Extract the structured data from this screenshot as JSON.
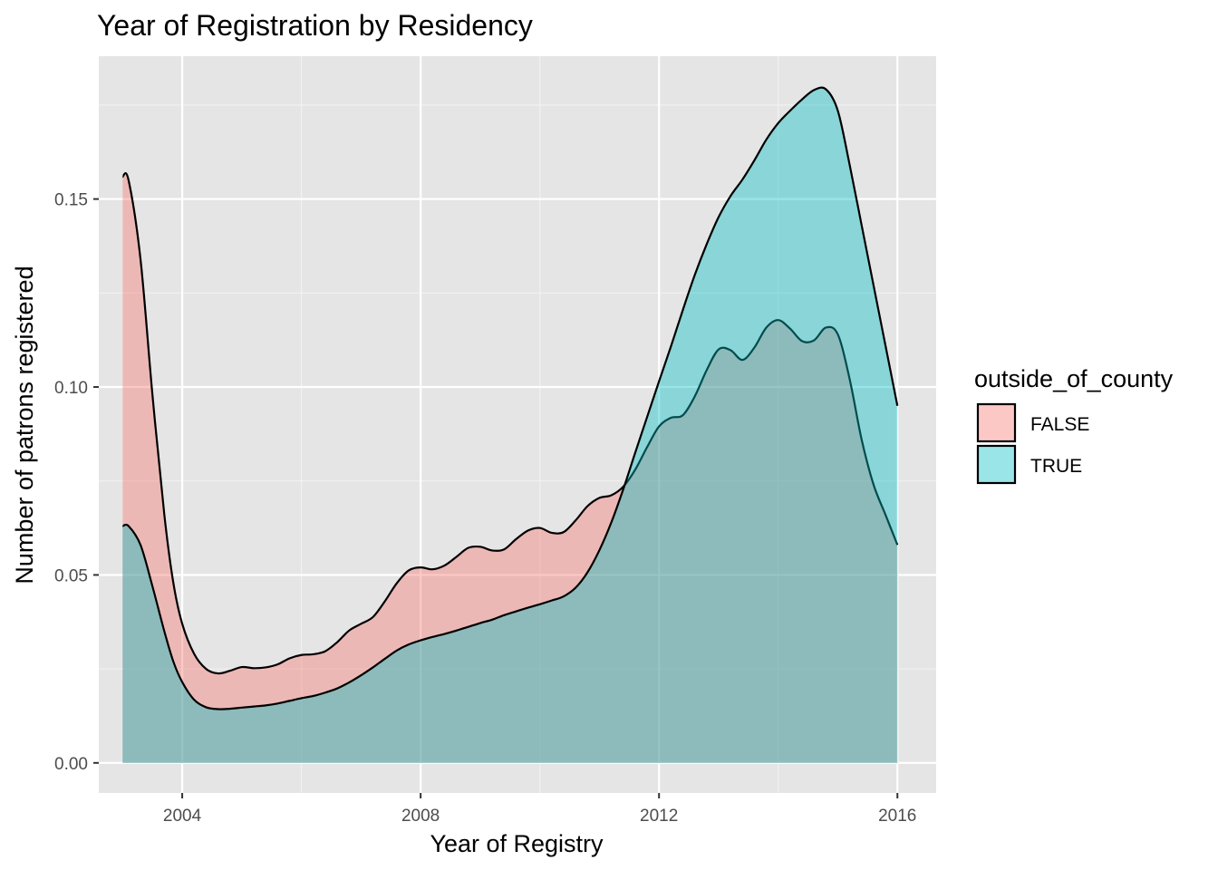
{
  "chart_data": {
    "type": "area",
    "title": "Year of Registration by Residency",
    "xlabel": "Year of Registry",
    "ylabel": "Number of patrons registered",
    "xlim": [
      2002.6,
      2016.65
    ],
    "ylim": [
      -0.008,
      0.188
    ],
    "x_ticks": [
      2004,
      2008,
      2012,
      2016
    ],
    "x_tick_labels": [
      "2004",
      "2008",
      "2012",
      "2016"
    ],
    "y_ticks": [
      0.0,
      0.05,
      0.1,
      0.15
    ],
    "y_tick_labels": [
      "0.00",
      "0.05",
      "0.10",
      "0.15"
    ],
    "grid": true,
    "legend": {
      "title": "outside_of_county",
      "placement": "right"
    },
    "series": [
      {
        "name": "FALSE",
        "color": "#F8766D",
        "x": [
          2003.0,
          2003.1,
          2003.3,
          2003.5,
          2003.7,
          2003.85,
          2004.0,
          2004.2,
          2004.4,
          2004.6,
          2004.8,
          2005.0,
          2005.2,
          2005.4,
          2005.6,
          2005.8,
          2006.0,
          2006.2,
          2006.4,
          2006.6,
          2006.8,
          2007.0,
          2007.2,
          2007.4,
          2007.6,
          2007.8,
          2008.0,
          2008.2,
          2008.4,
          2008.6,
          2008.8,
          2009.0,
          2009.2,
          2009.4,
          2009.6,
          2009.8,
          2010.0,
          2010.2,
          2010.4,
          2010.6,
          2010.8,
          2011.0,
          2011.2,
          2011.4,
          2011.6,
          2011.8,
          2012.0,
          2012.2,
          2012.4,
          2012.6,
          2012.8,
          2013.0,
          2013.2,
          2013.4,
          2013.6,
          2013.8,
          2014.0,
          2014.2,
          2014.4,
          2014.6,
          2014.8,
          2015.0,
          2015.2,
          2015.4,
          2015.6,
          2015.8,
          2016.0
        ],
        "values": [
          0.156,
          0.155,
          0.134,
          0.098,
          0.066,
          0.048,
          0.037,
          0.029,
          0.025,
          0.0238,
          0.0245,
          0.0255,
          0.0252,
          0.0254,
          0.0262,
          0.0278,
          0.0287,
          0.0289,
          0.0297,
          0.0321,
          0.0352,
          0.037,
          0.0388,
          0.043,
          0.0478,
          0.0512,
          0.052,
          0.0515,
          0.0525,
          0.0548,
          0.0572,
          0.0575,
          0.0565,
          0.0568,
          0.0595,
          0.0618,
          0.0625,
          0.0612,
          0.0614,
          0.0645,
          0.0683,
          0.0705,
          0.0712,
          0.0735,
          0.078,
          0.084,
          0.0895,
          0.0918,
          0.0925,
          0.0975,
          0.1045,
          0.11,
          0.1098,
          0.1072,
          0.1105,
          0.1158,
          0.1178,
          0.1155,
          0.1122,
          0.1124,
          0.1158,
          0.114,
          0.102,
          0.086,
          0.074,
          0.066,
          0.058
        ]
      },
      {
        "name": "TRUE",
        "color": "#00BFC4",
        "x": [
          2003.0,
          2003.1,
          2003.3,
          2003.5,
          2003.7,
          2003.85,
          2004.0,
          2004.2,
          2004.4,
          2004.6,
          2004.8,
          2005.0,
          2005.2,
          2005.4,
          2005.6,
          2005.8,
          2006.0,
          2006.2,
          2006.4,
          2006.6,
          2006.8,
          2007.0,
          2007.2,
          2007.4,
          2007.6,
          2007.8,
          2008.0,
          2008.2,
          2008.4,
          2008.6,
          2008.8,
          2009.0,
          2009.2,
          2009.4,
          2009.6,
          2009.8,
          2010.0,
          2010.2,
          2010.4,
          2010.6,
          2010.8,
          2011.0,
          2011.2,
          2011.4,
          2011.6,
          2011.8,
          2012.0,
          2012.2,
          2012.4,
          2012.6,
          2012.8,
          2013.0,
          2013.2,
          2013.4,
          2013.6,
          2013.8,
          2014.0,
          2014.2,
          2014.4,
          2014.6,
          2014.8,
          2015.0,
          2015.2,
          2015.4,
          2015.6,
          2015.8,
          2016.0
        ],
        "values": [
          0.063,
          0.063,
          0.058,
          0.047,
          0.035,
          0.027,
          0.0215,
          0.0168,
          0.0148,
          0.0143,
          0.0144,
          0.0147,
          0.015,
          0.0153,
          0.0158,
          0.0165,
          0.0172,
          0.0178,
          0.0187,
          0.0198,
          0.0214,
          0.0233,
          0.0254,
          0.0277,
          0.0299,
          0.0315,
          0.0326,
          0.0335,
          0.0343,
          0.0352,
          0.0362,
          0.0372,
          0.0381,
          0.0393,
          0.0403,
          0.0413,
          0.0422,
          0.0432,
          0.0443,
          0.0466,
          0.0507,
          0.0566,
          0.064,
          0.0728,
          0.0825,
          0.092,
          0.1015,
          0.1108,
          0.1205,
          0.1298,
          0.138,
          0.1452,
          0.1508,
          0.1552,
          0.1603,
          0.1658,
          0.1702,
          0.1735,
          0.1765,
          0.179,
          0.1792,
          0.1735,
          0.159,
          0.143,
          0.127,
          0.111,
          0.095
        ]
      }
    ]
  }
}
